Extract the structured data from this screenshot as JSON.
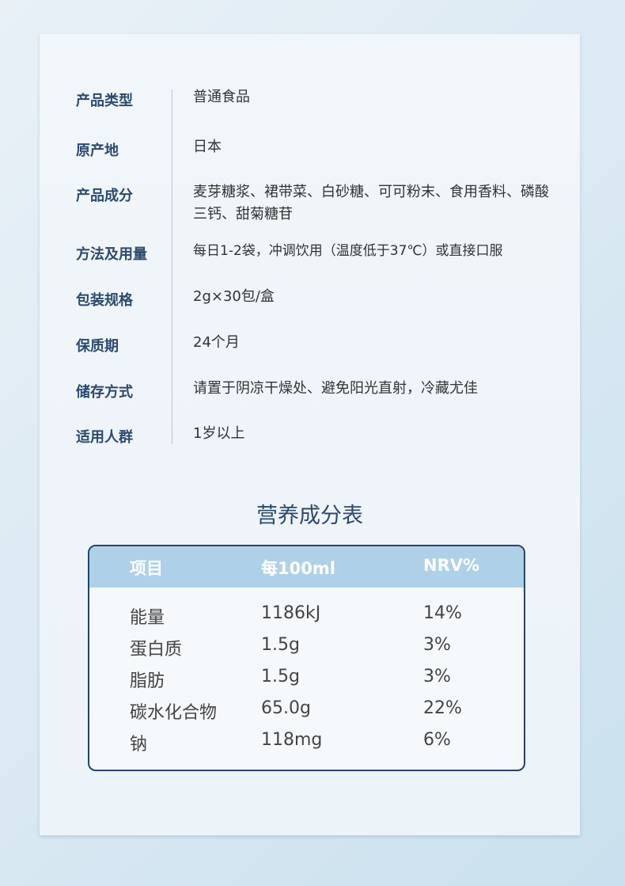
{
  "specs": [
    {
      "label": "产品类型",
      "value": "普通食品"
    },
    {
      "label": "原产地",
      "value": "日本"
    },
    {
      "label": "产品成分",
      "value": "麦芽糖浆、裙带菜、白砂糖、可可粉末、食用香料、磷酸三钙、甜菊糖苷"
    },
    {
      "label": "方法及用量",
      "value": "每日1-2袋，冲调饮用（温度低于37℃）或直接口服"
    },
    {
      "label": "包装规格",
      "value": "2g×30包/盒"
    },
    {
      "label": "保质期",
      "value": "24个月"
    },
    {
      "label": "储存方式",
      "value": "请置于阴凉干燥处、避免阳光直射，冷藏尤佳"
    },
    {
      "label": "适用人群",
      "value": "1岁以上"
    }
  ],
  "nutrition": {
    "title": "营养成分表",
    "headers": [
      "项目",
      "每100ml",
      "NRV%"
    ],
    "rows": [
      [
        "能量",
        "1186kJ",
        "14%"
      ],
      [
        "蛋白质",
        "1.5g",
        "3%"
      ],
      [
        "脂肪",
        "1.5g",
        "3%"
      ],
      [
        "碳水化合物",
        "65.0g",
        "22%"
      ],
      [
        "钠",
        "118mg",
        "6%"
      ]
    ]
  },
  "colors": {
    "label": "#2b4a6d",
    "header_bg": "#aed1e8",
    "border": "#23456b"
  }
}
